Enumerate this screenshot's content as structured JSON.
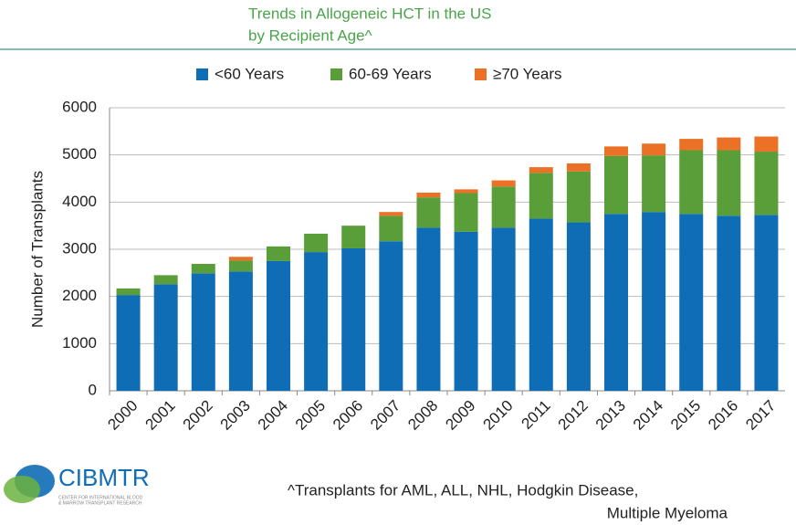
{
  "chart_data": {
    "type": "stacked_bar",
    "title": [
      "Trends in Allogeneic HCT in the US",
      "by Recipient Age^"
    ],
    "ylabel": "Number of Transplants",
    "categories": [
      "2000",
      "2001",
      "2002",
      "2003",
      "2004",
      "2005",
      "2006",
      "2007",
      "2008",
      "2009",
      "2010",
      "2011",
      "2012",
      "2013",
      "2014",
      "2015",
      "2016",
      "2017"
    ],
    "series": [
      {
        "name": "<60 Years",
        "color": "#0f6db5",
        "values": [
          2030,
          2260,
          2490,
          2530,
          2750,
          2940,
          3020,
          3170,
          3460,
          3370,
          3460,
          3650,
          3570,
          3750,
          3790,
          3750,
          3710,
          3730
        ]
      },
      {
        "name": "60-69 Years",
        "color": "#5a9e3a",
        "values": [
          140,
          190,
          200,
          230,
          310,
          390,
          480,
          540,
          640,
          820,
          870,
          970,
          1080,
          1230,
          1200,
          1350,
          1390,
          1340
        ]
      },
      {
        "name": "≥70 Years",
        "color": "#ea7125",
        "values": [
          0,
          0,
          0,
          80,
          0,
          0,
          0,
          80,
          100,
          80,
          130,
          120,
          170,
          200,
          250,
          240,
          270,
          320
        ]
      }
    ],
    "ylim": [
      0,
      6000
    ],
    "yticks": [
      0,
      1000,
      2000,
      3000,
      4000,
      5000,
      6000
    ],
    "grid": true,
    "legend": "top",
    "logo": {
      "name": "CIBMTR",
      "subtitle": [
        "CENTER FOR INTERNATIONAL BLOOD",
        "& MARROW TRANSPLANT RESEARCH"
      ]
    },
    "footnote": [
      "^Transplants for AML, ALL, NHL, Hodgkin Disease,",
      "Multiple Myeloma"
    ]
  }
}
